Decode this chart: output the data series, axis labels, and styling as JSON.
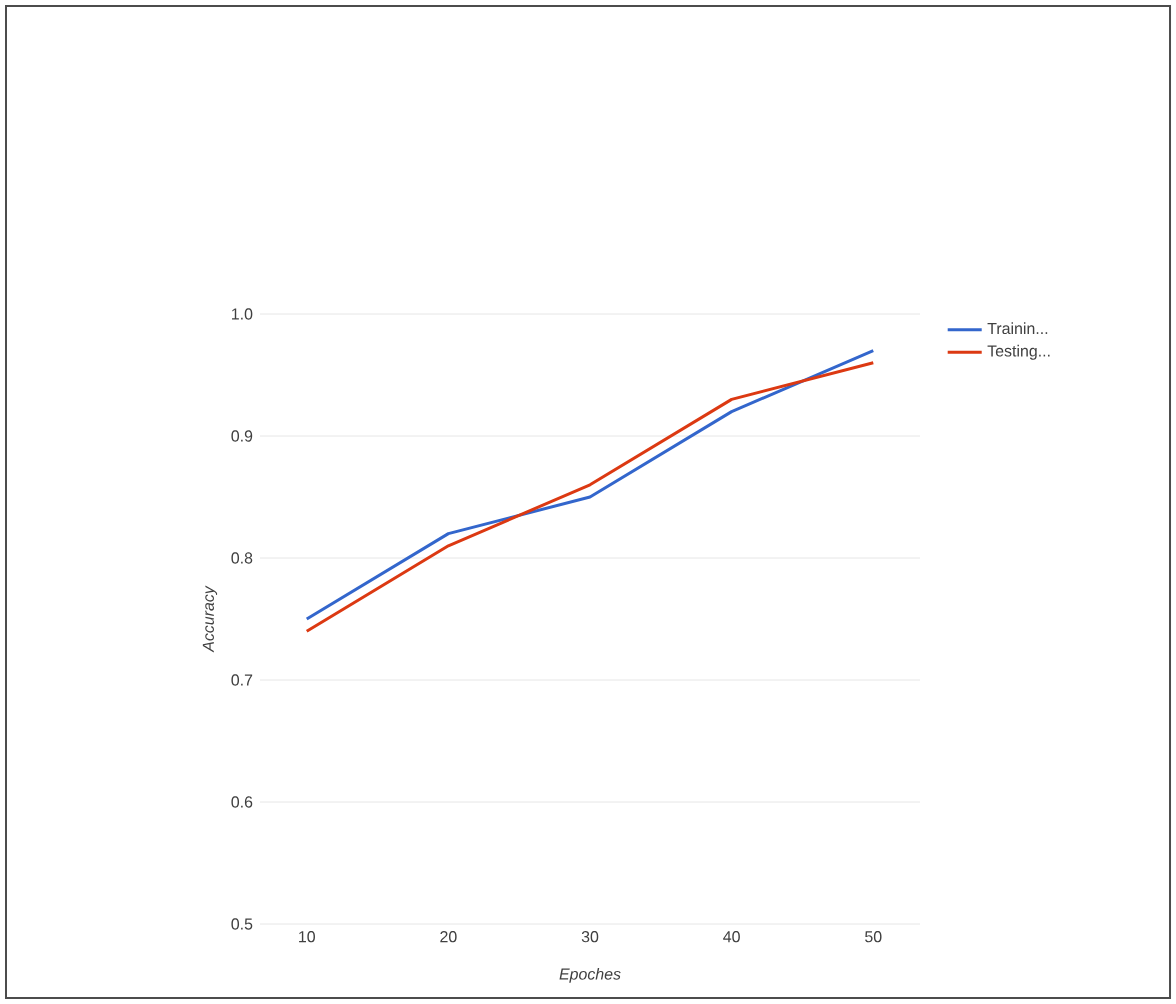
{
  "chart_data": {
    "type": "line",
    "xlabel": "Epoches",
    "ylabel": "Accuracy",
    "categories": [
      "10",
      "20",
      "30",
      "40",
      "50"
    ],
    "series": [
      {
        "name": "Trainin...",
        "color": "#3366cc",
        "values": [
          0.75,
          0.82,
          0.85,
          0.92,
          0.97
        ]
      },
      {
        "name": "Testing...",
        "color": "#dc3912",
        "values": [
          0.74,
          0.81,
          0.86,
          0.93,
          0.96
        ]
      }
    ],
    "ylim": [
      0.5,
      1.0
    ],
    "yticks": [
      0.5,
      0.6,
      0.7,
      0.8,
      0.9,
      {
        "value": 1.0,
        "label": "1.0"
      }
    ],
    "grid": "y",
    "legend": "top right",
    "marker": "none",
    "line_style": "solid"
  }
}
